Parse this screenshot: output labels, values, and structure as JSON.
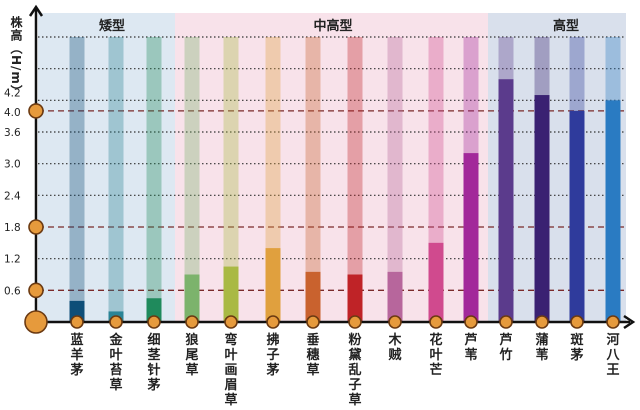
{
  "chart_data": {
    "type": "bar",
    "ylabel": "株高（H/m）",
    "yticks": [
      0.6,
      1.2,
      1.8,
      2.4,
      3.0,
      3.6,
      4.0,
      4.2
    ],
    "highlighted_ticks": [
      0.6,
      1.8,
      4.0
    ],
    "ylim": [
      0,
      5.4
    ],
    "grid": true,
    "groups": [
      {
        "label": "矮型",
        "members": [
          "蓝羊茅",
          "金叶苔草",
          "细茎针茅"
        ],
        "color": "#dde8f2"
      },
      {
        "label": "中高型",
        "members": [
          "狼尾草",
          "弯叶画眉草",
          "拂子茅",
          "垂穗草",
          "粉黛乱子草",
          "木贼",
          "花叶芒",
          "芦苇"
        ],
        "color": "#f8e2ea"
      },
      {
        "label": "高型",
        "members": [
          "芦竹",
          "蒲苇",
          "斑茅",
          "河八王"
        ],
        "color": "#d9e0ec"
      }
    ],
    "categories": [
      "蓝羊茅",
      "金叶苔草",
      "细茎针茅",
      "狼尾草",
      "弯叶画眉草",
      "拂子茅",
      "垂穗草",
      "粉黛乱子草",
      "木贼",
      "花叶芒",
      "芦苇",
      "芦竹",
      "蒲苇",
      "斑茅",
      "河八王"
    ],
    "values": [
      0.4,
      0.2,
      0.45,
      0.9,
      1.05,
      1.4,
      0.95,
      0.9,
      0.95,
      1.5,
      3.2,
      4.6,
      4.3,
      4.0,
      4.2
    ],
    "colors": [
      "#0e4e78",
      "#2b8496",
      "#1f8a5c",
      "#7cb36c",
      "#a9b944",
      "#e0a03e",
      "#c9622e",
      "#bf2327",
      "#b7669c",
      "#d04a8e",
      "#a2289a",
      "#5b3b8c",
      "#3a2172",
      "#2f3b9c",
      "#2a7bc2"
    ]
  }
}
